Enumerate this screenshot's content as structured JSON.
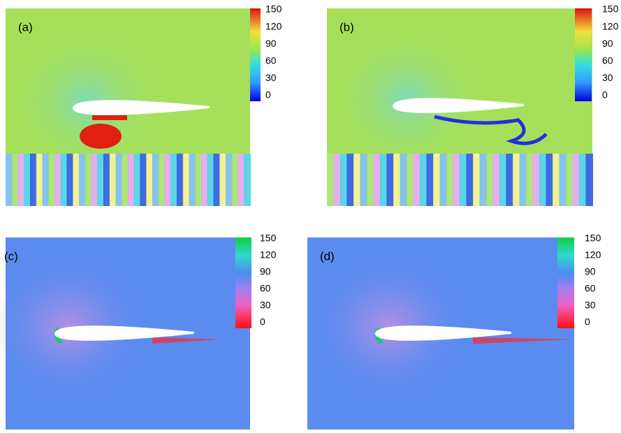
{
  "panels": [
    {
      "label": "(a)",
      "colorbar": {
        "ticks": [
          150,
          120,
          90,
          60,
          30,
          0
        ]
      }
    },
    {
      "label": "(b)",
      "colorbar": {
        "ticks": [
          150,
          120,
          90,
          60,
          30,
          0
        ]
      }
    },
    {
      "label": "(c)",
      "colorbar": {
        "ticks": [
          150,
          120,
          90,
          60,
          30,
          0
        ]
      }
    },
    {
      "label": "(d)",
      "colorbar": {
        "ticks": [
          150,
          120,
          90,
          60,
          30,
          0
        ]
      }
    }
  ]
}
